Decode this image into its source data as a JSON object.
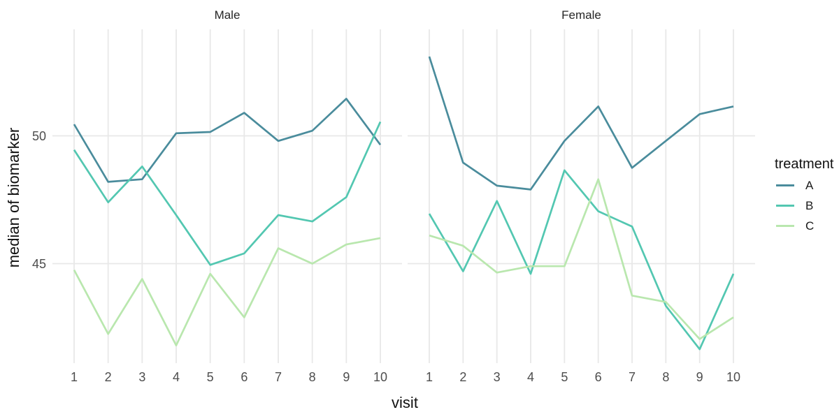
{
  "figure": {
    "strip_labels": [
      "Male",
      "Female"
    ],
    "y_axis": {
      "title": "median of biomarker",
      "ticks": [
        {
          "label": "50",
          "value": 50
        },
        {
          "label": "45",
          "value": 45
        }
      ]
    },
    "x_axis": {
      "title": "visit",
      "tick_labels": [
        "1",
        "2",
        "3",
        "4",
        "5",
        "6",
        "7",
        "8",
        "9",
        "10"
      ]
    },
    "legend": {
      "title": "treatment",
      "entries": [
        {
          "label": "A",
          "color": "#4A8C9C"
        },
        {
          "label": "B",
          "color": "#53C7B1"
        },
        {
          "label": "C",
          "color": "#B9E7AE"
        }
      ]
    },
    "colors": {
      "gridline": "#E8E8E8",
      "tick_text": "#4D4D4D",
      "title_text": "#111111"
    }
  },
  "chart_data": {
    "type": "line",
    "title": "",
    "xlabel": "visit",
    "ylabel": "median of biomarker",
    "x": [
      1,
      2,
      3,
      4,
      5,
      6,
      7,
      8,
      9,
      10
    ],
    "ylim": [
      41.1,
      54.2
    ],
    "y_gridlines": [
      45,
      50
    ],
    "grid": "major-only",
    "legend_position": "right",
    "facets": [
      {
        "label": "Male",
        "series": [
          {
            "name": "A",
            "color": "#4A8C9C",
            "values": [
              50.45,
              48.2,
              48.3,
              50.1,
              50.15,
              50.9,
              49.8,
              50.2,
              51.45,
              49.65
            ]
          },
          {
            "name": "B",
            "color": "#53C7B1",
            "values": [
              49.45,
              47.4,
              48.8,
              46.9,
              44.95,
              45.4,
              46.9,
              46.65,
              47.6,
              50.55
            ]
          },
          {
            "name": "C",
            "color": "#B9E7AE",
            "values": [
              44.75,
              42.25,
              44.4,
              41.8,
              44.6,
              42.9,
              45.6,
              45.0,
              45.75,
              46.0
            ]
          }
        ]
      },
      {
        "label": "Female",
        "series": [
          {
            "name": "A",
            "color": "#4A8C9C",
            "values": [
              53.1,
              48.95,
              48.05,
              47.9,
              49.8,
              51.15,
              48.75,
              49.8,
              50.85,
              51.15
            ]
          },
          {
            "name": "B",
            "color": "#53C7B1",
            "values": [
              46.95,
              44.7,
              47.45,
              44.6,
              48.65,
              47.05,
              46.45,
              43.35,
              41.65,
              44.6
            ]
          },
          {
            "name": "C",
            "color": "#B9E7AE",
            "values": [
              46.1,
              45.7,
              44.65,
              44.9,
              44.9,
              48.3,
              43.75,
              43.5,
              42.05,
              42.9
            ]
          }
        ]
      }
    ]
  }
}
